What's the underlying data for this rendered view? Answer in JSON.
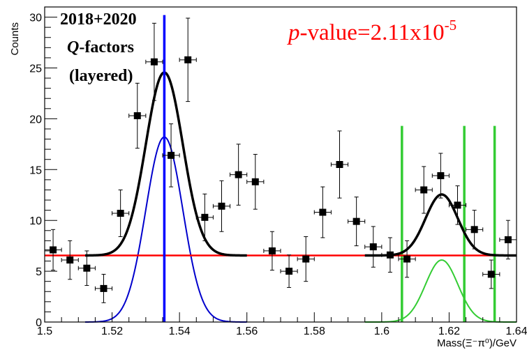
{
  "chart_data": {
    "type": "scatter",
    "xlabel": "Mass(Ξ⁻π⁰)/GeV",
    "ylabel": "Counts",
    "xlim": [
      1.5,
      1.64
    ],
    "ylim": [
      0,
      31
    ],
    "x_ticks": [
      {
        "value": 1.5,
        "label": "1.5"
      },
      {
        "value": 1.52,
        "label": "1.52"
      },
      {
        "value": 1.54,
        "label": "1.54"
      },
      {
        "value": 1.56,
        "label": "1.56"
      },
      {
        "value": 1.58,
        "label": "1.58"
      },
      {
        "value": 1.6,
        "label": "1.6"
      },
      {
        "value": 1.62,
        "label": "1.62"
      },
      {
        "value": 1.64,
        "label": "1.64"
      }
    ],
    "y_ticks": [
      {
        "value": 0,
        "label": "0"
      },
      {
        "value": 5,
        "label": "5"
      },
      {
        "value": 10,
        "label": "10"
      },
      {
        "value": 15,
        "label": "15"
      },
      {
        "value": 20,
        "label": "20"
      },
      {
        "value": 25,
        "label": "25"
      },
      {
        "value": 30,
        "label": "30"
      }
    ],
    "bin_width": 0.005,
    "points": [
      {
        "x": 1.5025,
        "y": 7.1,
        "err": 2.0
      },
      {
        "x": 1.5075,
        "y": 6.1,
        "err": 1.9
      },
      {
        "x": 1.5125,
        "y": 5.3,
        "err": 1.7
      },
      {
        "x": 1.5175,
        "y": 3.3,
        "err": 1.4
      },
      {
        "x": 1.5225,
        "y": 10.7,
        "err": 2.3
      },
      {
        "x": 1.5275,
        "y": 20.3,
        "err": 3.2
      },
      {
        "x": 1.5325,
        "y": 25.6,
        "err": 3.8
      },
      {
        "x": 1.5375,
        "y": 16.4,
        "err": 3.1
      },
      {
        "x": 1.5425,
        "y": 25.8,
        "err": 4.1
      },
      {
        "x": 1.5475,
        "y": 10.3,
        "err": 2.3
      },
      {
        "x": 1.5525,
        "y": 11.4,
        "err": 2.5
      },
      {
        "x": 1.5575,
        "y": 14.5,
        "err": 3.0
      },
      {
        "x": 1.5625,
        "y": 13.8,
        "err": 2.7
      },
      {
        "x": 1.5675,
        "y": 7.0,
        "err": 1.9
      },
      {
        "x": 1.5725,
        "y": 5.0,
        "err": 1.6
      },
      {
        "x": 1.5775,
        "y": 6.2,
        "err": 2.2
      },
      {
        "x": 1.5825,
        "y": 10.8,
        "err": 2.5
      },
      {
        "x": 1.5875,
        "y": 15.5,
        "err": 3.3
      },
      {
        "x": 1.5925,
        "y": 9.9,
        "err": 2.4
      },
      {
        "x": 1.5975,
        "y": 7.4,
        "err": 2.0
      },
      {
        "x": 1.6025,
        "y": 6.6,
        "err": 1.7
      },
      {
        "x": 1.6075,
        "y": 6.2,
        "err": 1.8
      },
      {
        "x": 1.6125,
        "y": 13.0,
        "err": 2.3
      },
      {
        "x": 1.6175,
        "y": 14.4,
        "err": 2.2
      },
      {
        "x": 1.6225,
        "y": 11.5,
        "err": 1.9
      },
      {
        "x": 1.6275,
        "y": 9.1,
        "err": 1.9
      },
      {
        "x": 1.6325,
        "y": 4.7,
        "err": 1.4
      },
      {
        "x": 1.6375,
        "y": 8.1,
        "err": 1.9
      }
    ],
    "fits": {
      "background_level": 6.55,
      "total_fit": {
        "color": "#000000",
        "ranges": [
          [
            1.512,
            1.56
          ],
          [
            1.595,
            1.64
          ]
        ],
        "peaks": [
          {
            "mean": 1.5355,
            "sigma": 0.0055,
            "amplitude": 18.0
          },
          {
            "mean": 1.6178,
            "sigma": 0.0048,
            "amplitude": 6.0
          }
        ]
      },
      "background_line": {
        "color": "#ff0000",
        "range": [
          1.5,
          1.64
        ]
      },
      "signal_1": {
        "color": "#0000cc",
        "mean": 1.5355,
        "sigma": 0.0055,
        "amplitude": 18.2,
        "range": [
          1.512,
          1.56
        ]
      },
      "signal_2": {
        "color": "#33cc33",
        "mean": 1.6178,
        "sigma": 0.0048,
        "amplitude": 6.1,
        "range": [
          1.595,
          1.64
        ]
      },
      "blue_line": {
        "x": 1.5355,
        "color": "#0000ff"
      },
      "green_lines": {
        "x": [
          1.606,
          1.6245,
          1.6335
        ],
        "color": "#33cc33",
        "y_top": 19.3
      }
    },
    "annotations": {
      "line1": "2018+2020",
      "q_letter": "Q",
      "q_rest": "-factors",
      "line3": "(layered)",
      "pvalue_p": "p",
      "pvalue_main": "-value=2.11x10",
      "pvalue_exp": "-5"
    }
  }
}
